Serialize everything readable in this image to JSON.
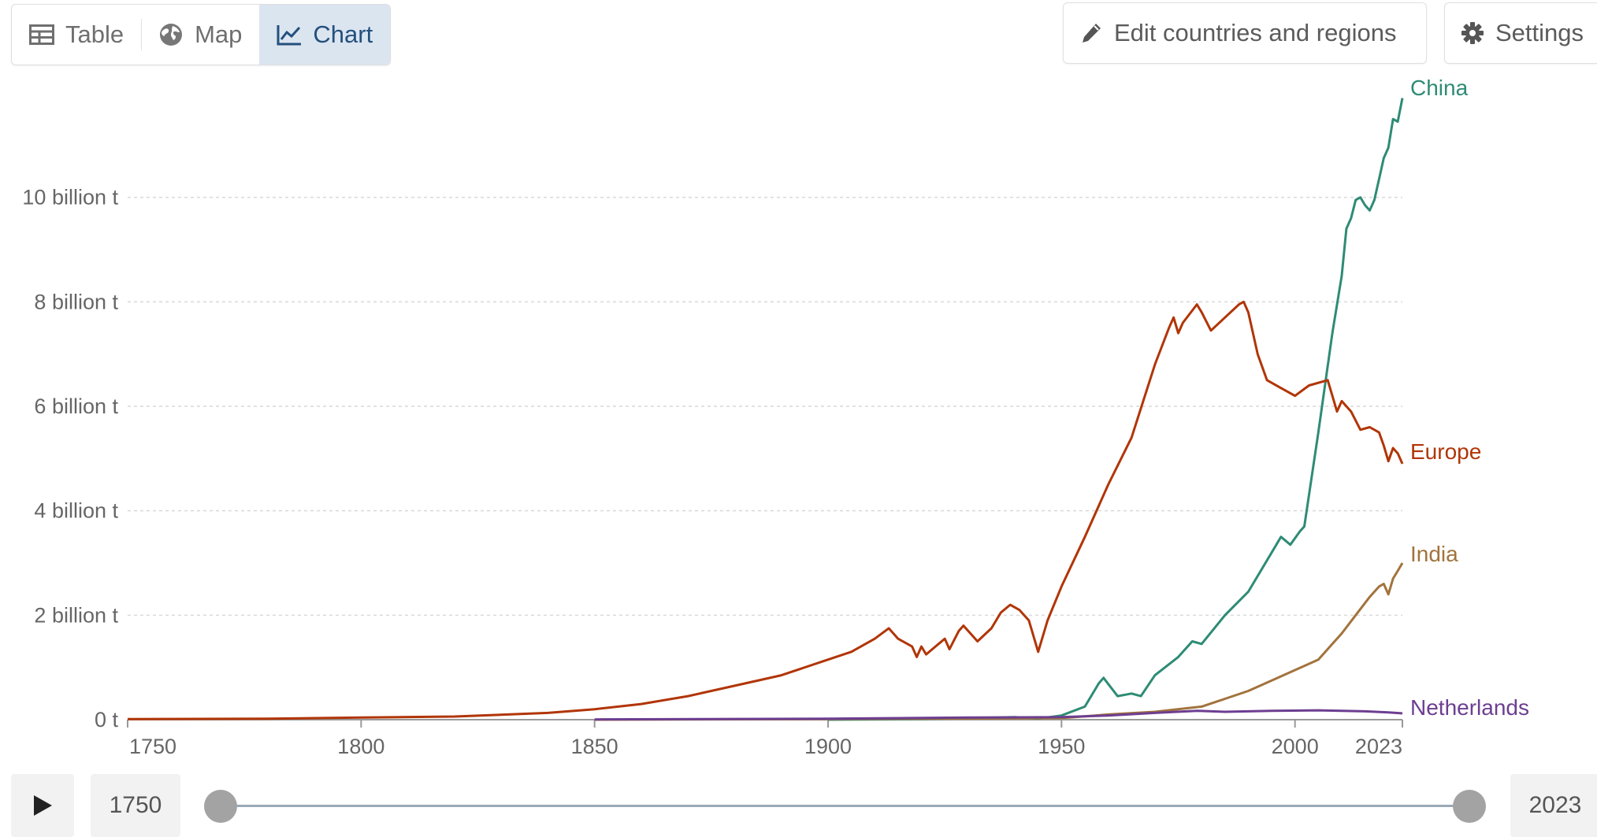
{
  "toolbar": {
    "tabs": [
      {
        "label": "Table",
        "icon": "table-icon"
      },
      {
        "label": "Map",
        "icon": "globe-icon"
      },
      {
        "label": "Chart",
        "icon": "line-chart-icon",
        "active": true
      }
    ],
    "edit_label": "Edit countries and regions",
    "settings_label": "Settings"
  },
  "timeline": {
    "start_year": "1750",
    "end_year": "2023",
    "range": [
      1750,
      2023
    ]
  },
  "chart_data": {
    "type": "line",
    "title": "",
    "xlabel": "",
    "ylabel": "",
    "xlim": [
      1750,
      2023
    ],
    "ylim": [
      0,
      12000000000
    ],
    "x_ticks": [
      1750,
      1800,
      1850,
      1900,
      1950,
      2000,
      2023
    ],
    "y_ticks": [
      {
        "value": 0,
        "label": "0 t"
      },
      {
        "value": 2000000000,
        "label": "2 billion t"
      },
      {
        "value": 4000000000,
        "label": "4 billion t"
      },
      {
        "value": 6000000000,
        "label": "6 billion t"
      },
      {
        "value": 8000000000,
        "label": "8 billion t"
      },
      {
        "value": 10000000000,
        "label": "10 billion t"
      }
    ],
    "grid": "horizontal",
    "legend": "inline-right",
    "series": [
      {
        "name": "China",
        "color": "#2e8b75",
        "values": [
          [
            1900,
            0
          ],
          [
            1920,
            10000000.0
          ],
          [
            1940,
            50000000.0
          ],
          [
            1945,
            20000000.0
          ],
          [
            1950,
            80000000.0
          ],
          [
            1955,
            250000000.0
          ],
          [
            1958,
            700000000.0
          ],
          [
            1959,
            800000000.0
          ],
          [
            1962,
            450000000.0
          ],
          [
            1965,
            500000000.0
          ],
          [
            1967,
            450000000.0
          ],
          [
            1970,
            850000000.0
          ],
          [
            1975,
            1200000000.0
          ],
          [
            1978,
            1500000000.0
          ],
          [
            1980,
            1450000000.0
          ],
          [
            1985,
            2000000000.0
          ],
          [
            1990,
            2450000000.0
          ],
          [
            1995,
            3200000000.0
          ],
          [
            1997,
            3500000000.0
          ],
          [
            1999,
            3350000000.0
          ],
          [
            2001,
            3600000000.0
          ],
          [
            2002,
            3700000000.0
          ],
          [
            2005,
            5500000000.0
          ],
          [
            2008,
            7400000000.0
          ],
          [
            2010,
            8500000000.0
          ],
          [
            2011,
            9400000000.0
          ],
          [
            2012,
            9600000000.0
          ],
          [
            2013,
            9950000000.0
          ],
          [
            2014,
            10000000000.0
          ],
          [
            2015,
            9850000000.0
          ],
          [
            2016,
            9750000000.0
          ],
          [
            2017,
            9950000000.0
          ],
          [
            2018,
            10350000000.0
          ],
          [
            2019,
            10750000000.0
          ],
          [
            2020,
            10950000000.0
          ],
          [
            2021,
            11500000000.0
          ],
          [
            2022,
            11450000000.0
          ],
          [
            2023,
            11900000000.0
          ]
        ]
      },
      {
        "name": "Europe",
        "color": "#b13507",
        "values": [
          [
            1750,
            10000000.0
          ],
          [
            1780,
            20000000.0
          ],
          [
            1800,
            40000000.0
          ],
          [
            1820,
            60000000.0
          ],
          [
            1840,
            130000000.0
          ],
          [
            1850,
            200000000.0
          ],
          [
            1860,
            300000000.0
          ],
          [
            1870,
            450000000.0
          ],
          [
            1880,
            650000000.0
          ],
          [
            1890,
            850000000.0
          ],
          [
            1900,
            1150000000.0
          ],
          [
            1905,
            1300000000.0
          ],
          [
            1910,
            1550000000.0
          ],
          [
            1913,
            1750000000.0
          ],
          [
            1915,
            1550000000.0
          ],
          [
            1918,
            1400000000.0
          ],
          [
            1919,
            1200000000.0
          ],
          [
            1920,
            1400000000.0
          ],
          [
            1921,
            1250000000.0
          ],
          [
            1923,
            1400000000.0
          ],
          [
            1925,
            1550000000.0
          ],
          [
            1926,
            1350000000.0
          ],
          [
            1928,
            1700000000.0
          ],
          [
            1929,
            1800000000.0
          ],
          [
            1932,
            1500000000.0
          ],
          [
            1935,
            1750000000.0
          ],
          [
            1937,
            2050000000.0
          ],
          [
            1939,
            2200000000.0
          ],
          [
            1941,
            2100000000.0
          ],
          [
            1943,
            1900000000.0
          ],
          [
            1945,
            1300000000.0
          ],
          [
            1947,
            1900000000.0
          ],
          [
            1950,
            2550000000.0
          ],
          [
            1955,
            3500000000.0
          ],
          [
            1960,
            4500000000.0
          ],
          [
            1965,
            5400000000.0
          ],
          [
            1970,
            6800000000.0
          ],
          [
            1973,
            7500000000.0
          ],
          [
            1974,
            7700000000.0
          ],
          [
            1975,
            7400000000.0
          ],
          [
            1976,
            7600000000.0
          ],
          [
            1979,
            7950000000.0
          ],
          [
            1980,
            7800000000.0
          ],
          [
            1982,
            7450000000.0
          ],
          [
            1985,
            7700000000.0
          ],
          [
            1988,
            7950000000.0
          ],
          [
            1989,
            8000000000.0
          ],
          [
            1990,
            7800000000.0
          ],
          [
            1992,
            7000000000.0
          ],
          [
            1994,
            6500000000.0
          ],
          [
            1997,
            6350000000.0
          ],
          [
            2000,
            6200000000.0
          ],
          [
            2003,
            6400000000.0
          ],
          [
            2007,
            6500000000.0
          ],
          [
            2009,
            5900000000.0
          ],
          [
            2010,
            6100000000.0
          ],
          [
            2012,
            5900000000.0
          ],
          [
            2014,
            5550000000.0
          ],
          [
            2016,
            5600000000.0
          ],
          [
            2018,
            5500000000.0
          ],
          [
            2019,
            5250000000.0
          ],
          [
            2020,
            4950000000.0
          ],
          [
            2021,
            5200000000.0
          ],
          [
            2022,
            5100000000.0
          ],
          [
            2023,
            4900000000.0
          ]
        ]
      },
      {
        "name": "India",
        "color": "#a2733c",
        "values": [
          [
            1850,
            0
          ],
          [
            1900,
            10000000.0
          ],
          [
            1950,
            30000000.0
          ],
          [
            1960,
            100000000.0
          ],
          [
            1970,
            150000000.0
          ],
          [
            1980,
            250000000.0
          ],
          [
            1985,
            400000000.0
          ],
          [
            1990,
            550000000.0
          ],
          [
            1995,
            750000000.0
          ],
          [
            2000,
            950000000.0
          ],
          [
            2005,
            1150000000.0
          ],
          [
            2008,
            1450000000.0
          ],
          [
            2010,
            1650000000.0
          ],
          [
            2013,
            2000000000.0
          ],
          [
            2016,
            2350000000.0
          ],
          [
            2018,
            2550000000.0
          ],
          [
            2019,
            2600000000.0
          ],
          [
            2020,
            2400000000.0
          ],
          [
            2021,
            2700000000.0
          ],
          [
            2022,
            2850000000.0
          ],
          [
            2023,
            3000000000.0
          ]
        ]
      },
      {
        "name": "Netherlands",
        "color": "#6d3e91",
        "values": [
          [
            1850,
            5000000.0
          ],
          [
            1900,
            20000000.0
          ],
          [
            1930,
            40000000.0
          ],
          [
            1950,
            50000000.0
          ],
          [
            1960,
            80000000.0
          ],
          [
            1970,
            130000000.0
          ],
          [
            1979,
            170000000.0
          ],
          [
            1985,
            150000000.0
          ],
          [
            1995,
            170000000.0
          ],
          [
            2005,
            180000000.0
          ],
          [
            2015,
            160000000.0
          ],
          [
            2020,
            140000000.0
          ],
          [
            2023,
            120000000.0
          ]
        ]
      }
    ]
  }
}
